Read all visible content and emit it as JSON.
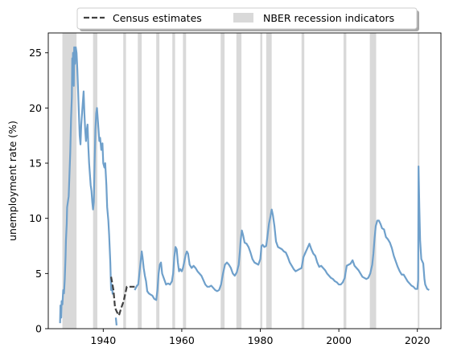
{
  "chart_data": {
    "type": "line",
    "title": "",
    "xlabel": "",
    "ylabel": "unemployment rate (%)",
    "xlim": [
      1926,
      2026
    ],
    "ylim": [
      0,
      26.8
    ],
    "xticks": [
      1940,
      1960,
      1980,
      2000,
      2020
    ],
    "yticks": [
      0,
      5,
      10,
      15,
      20,
      25
    ],
    "grid": false,
    "legend": {
      "placement": "top-center, outside",
      "entries": [
        {
          "label": "Census estimates",
          "style": "dashed",
          "color": "#404040"
        },
        {
          "label": "NBER recession indicators",
          "style": "patch",
          "color": "#d9d9d9"
        }
      ]
    },
    "recessions": [
      [
        1929.6,
        1933.2
      ],
      [
        1937.4,
        1938.5
      ],
      [
        1945.1,
        1945.8
      ],
      [
        1948.8,
        1949.8
      ],
      [
        1953.5,
        1954.3
      ],
      [
        1957.6,
        1958.3
      ],
      [
        1960.3,
        1961.1
      ],
      [
        1969.9,
        1970.9
      ],
      [
        1973.9,
        1975.2
      ],
      [
        1980.0,
        1980.5
      ],
      [
        1981.5,
        1982.9
      ],
      [
        1990.5,
        1991.2
      ],
      [
        2001.2,
        2001.9
      ],
      [
        2007.9,
        2009.5
      ],
      [
        2020.1,
        2020.3
      ]
    ],
    "series": [
      {
        "name": "",
        "color": "#6fa0cb",
        "style": "solid",
        "segments": [
          [
            [
              1929.0,
              0.5
            ],
            [
              1929.1,
              2.1
            ],
            [
              1929.3,
              1.0
            ],
            [
              1929.4,
              2.5
            ],
            [
              1929.6,
              2.2
            ],
            [
              1929.8,
              3.5
            ],
            [
              1930.0,
              3.2
            ],
            [
              1930.2,
              4.5
            ],
            [
              1930.4,
              6.5
            ],
            [
              1930.5,
              8.0
            ],
            [
              1930.7,
              9.5
            ],
            [
              1930.8,
              11.0
            ],
            [
              1931.0,
              11.5
            ],
            [
              1931.2,
              12.0
            ],
            [
              1931.4,
              14.0
            ],
            [
              1931.6,
              16.0
            ],
            [
              1931.8,
              19.0
            ],
            [
              1932.0,
              21.0
            ],
            [
              1932.1,
              24.5
            ],
            [
              1932.2,
              23.0
            ],
            [
              1932.3,
              25.0
            ],
            [
              1932.5,
              22.0
            ],
            [
              1932.6,
              25.5
            ],
            [
              1932.8,
              24.0
            ],
            [
              1933.0,
              25.5
            ],
            [
              1933.2,
              25.0
            ],
            [
              1933.4,
              23.5
            ],
            [
              1933.6,
              21.5
            ],
            [
              1933.8,
              19.5
            ],
            [
              1934.0,
              17.5
            ],
            [
              1934.2,
              16.7
            ],
            [
              1934.4,
              18.5
            ],
            [
              1934.6,
              19.5
            ],
            [
              1934.8,
              20.5
            ],
            [
              1935.0,
              21.5
            ],
            [
              1935.2,
              19.5
            ],
            [
              1935.4,
              18.0
            ],
            [
              1935.6,
              17.0
            ],
            [
              1935.8,
              18.0
            ],
            [
              1936.0,
              18.5
            ],
            [
              1936.2,
              16.5
            ],
            [
              1936.4,
              15.0
            ],
            [
              1936.6,
              14.0
            ],
            [
              1936.8,
              13.0
            ],
            [
              1937.0,
              12.5
            ],
            [
              1937.2,
              11.5
            ],
            [
              1937.4,
              10.8
            ],
            [
              1937.6,
              11.5
            ],
            [
              1937.8,
              15.0
            ],
            [
              1938.0,
              18.0
            ],
            [
              1938.2,
              19.5
            ],
            [
              1938.4,
              20.0
            ],
            [
              1938.6,
              19.0
            ],
            [
              1938.8,
              18.0
            ],
            [
              1939.0,
              17.0
            ],
            [
              1939.2,
              17.3
            ],
            [
              1939.5,
              16.2
            ],
            [
              1939.8,
              16.8
            ],
            [
              1940.0,
              15.0
            ],
            [
              1940.3,
              14.6
            ],
            [
              1940.5,
              15.0
            ],
            [
              1940.8,
              13.0
            ],
            [
              1941.0,
              11.0
            ],
            [
              1941.3,
              9.8
            ],
            [
              1941.5,
              8.5
            ],
            [
              1941.8,
              6.0
            ],
            [
              1942.0,
              3.5
            ],
            [
              1942.2,
              4.0
            ],
            [
              1942.4,
              3.1
            ]
          ],
          [
            [
              1943.2,
              1.0
            ],
            [
              1943.4,
              0.3
            ]
          ],
          [
            [
              1948.0,
              3.5
            ],
            [
              1948.3,
              3.7
            ],
            [
              1948.6,
              3.9
            ],
            [
              1948.9,
              4.0
            ],
            [
              1949.2,
              5.0
            ],
            [
              1949.5,
              6.0
            ],
            [
              1949.8,
              7.0
            ],
            [
              1950.0,
              6.5
            ],
            [
              1950.3,
              5.5
            ],
            [
              1950.6,
              4.8
            ],
            [
              1950.9,
              4.3
            ],
            [
              1951.2,
              3.4
            ],
            [
              1951.6,
              3.2
            ],
            [
              1952.0,
              3.1
            ],
            [
              1952.5,
              3.0
            ],
            [
              1953.0,
              2.7
            ],
            [
              1953.5,
              2.6
            ],
            [
              1953.8,
              3.5
            ],
            [
              1954.1,
              5.0
            ],
            [
              1954.4,
              5.8
            ],
            [
              1954.7,
              6.0
            ],
            [
              1955.0,
              5.0
            ],
            [
              1955.3,
              4.7
            ],
            [
              1955.7,
              4.3
            ],
            [
              1956.0,
              4.0
            ],
            [
              1956.5,
              4.1
            ],
            [
              1957.0,
              4.0
            ],
            [
              1957.5,
              4.3
            ],
            [
              1957.8,
              5.0
            ],
            [
              1958.1,
              6.5
            ],
            [
              1958.4,
              7.4
            ],
            [
              1958.7,
              7.2
            ],
            [
              1959.0,
              6.0
            ],
            [
              1959.3,
              5.2
            ],
            [
              1959.6,
              5.4
            ],
            [
              1960.0,
              5.2
            ],
            [
              1960.3,
              5.5
            ],
            [
              1960.6,
              6.0
            ],
            [
              1961.0,
              6.7
            ],
            [
              1961.3,
              7.0
            ],
            [
              1961.6,
              6.8
            ],
            [
              1962.0,
              5.8
            ],
            [
              1962.5,
              5.5
            ],
            [
              1963.0,
              5.7
            ],
            [
              1963.5,
              5.5
            ],
            [
              1964.0,
              5.2
            ],
            [
              1964.5,
              5.0
            ],
            [
              1965.0,
              4.8
            ],
            [
              1965.5,
              4.4
            ],
            [
              1966.0,
              4.0
            ],
            [
              1966.5,
              3.8
            ],
            [
              1967.0,
              3.8
            ],
            [
              1967.5,
              3.9
            ],
            [
              1968.0,
              3.7
            ],
            [
              1968.5,
              3.5
            ],
            [
              1969.0,
              3.4
            ],
            [
              1969.5,
              3.5
            ],
            [
              1970.0,
              4.0
            ],
            [
              1970.5,
              5.0
            ],
            [
              1971.0,
              5.8
            ],
            [
              1971.5,
              6.0
            ],
            [
              1972.0,
              5.8
            ],
            [
              1972.5,
              5.5
            ],
            [
              1973.0,
              5.0
            ],
            [
              1973.5,
              4.8
            ],
            [
              1974.0,
              5.1
            ],
            [
              1974.5,
              5.8
            ],
            [
              1974.8,
              7.0
            ],
            [
              1975.0,
              8.0
            ],
            [
              1975.3,
              8.9
            ],
            [
              1975.6,
              8.5
            ],
            [
              1976.0,
              7.8
            ],
            [
              1976.5,
              7.7
            ],
            [
              1977.0,
              7.4
            ],
            [
              1977.5,
              6.9
            ],
            [
              1978.0,
              6.3
            ],
            [
              1978.5,
              6.0
            ],
            [
              1979.0,
              5.9
            ],
            [
              1979.5,
              5.8
            ],
            [
              1980.0,
              6.3
            ],
            [
              1980.3,
              7.5
            ],
            [
              1980.6,
              7.6
            ],
            [
              1981.0,
              7.4
            ],
            [
              1981.5,
              7.5
            ],
            [
              1981.8,
              8.3
            ],
            [
              1982.2,
              9.5
            ],
            [
              1982.6,
              10.2
            ],
            [
              1982.9,
              10.8
            ],
            [
              1983.2,
              10.3
            ],
            [
              1983.6,
              9.3
            ],
            [
              1984.0,
              7.9
            ],
            [
              1984.5,
              7.4
            ],
            [
              1985.0,
              7.3
            ],
            [
              1985.5,
              7.2
            ],
            [
              1986.0,
              7.0
            ],
            [
              1986.5,
              6.9
            ],
            [
              1987.0,
              6.5
            ],
            [
              1987.5,
              6.0
            ],
            [
              1988.0,
              5.7
            ],
            [
              1988.5,
              5.4
            ],
            [
              1989.0,
              5.2
            ],
            [
              1989.5,
              5.3
            ],
            [
              1990.0,
              5.4
            ],
            [
              1990.5,
              5.5
            ],
            [
              1991.0,
              6.5
            ],
            [
              1991.5,
              6.9
            ],
            [
              1992.0,
              7.3
            ],
            [
              1992.5,
              7.7
            ],
            [
              1993.0,
              7.2
            ],
            [
              1993.5,
              6.8
            ],
            [
              1994.0,
              6.6
            ],
            [
              1994.5,
              6.0
            ],
            [
              1995.0,
              5.6
            ],
            [
              1995.5,
              5.7
            ],
            [
              1996.0,
              5.5
            ],
            [
              1996.5,
              5.3
            ],
            [
              1997.0,
              5.0
            ],
            [
              1997.5,
              4.8
            ],
            [
              1998.0,
              4.6
            ],
            [
              1998.5,
              4.5
            ],
            [
              1999.0,
              4.3
            ],
            [
              1999.5,
              4.2
            ],
            [
              2000.0,
              4.0
            ],
            [
              2000.5,
              4.0
            ],
            [
              2001.0,
              4.2
            ],
            [
              2001.5,
              4.6
            ],
            [
              2002.0,
              5.7
            ],
            [
              2002.5,
              5.8
            ],
            [
              2003.0,
              5.9
            ],
            [
              2003.5,
              6.2
            ],
            [
              2004.0,
              5.7
            ],
            [
              2004.5,
              5.5
            ],
            [
              2005.0,
              5.3
            ],
            [
              2005.5,
              5.0
            ],
            [
              2006.0,
              4.7
            ],
            [
              2006.5,
              4.6
            ],
            [
              2007.0,
              4.5
            ],
            [
              2007.5,
              4.6
            ],
            [
              2008.0,
              5.0
            ],
            [
              2008.5,
              5.8
            ],
            [
              2008.8,
              6.8
            ],
            [
              2009.1,
              8.2
            ],
            [
              2009.4,
              9.3
            ],
            [
              2009.8,
              9.8
            ],
            [
              2010.2,
              9.8
            ],
            [
              2010.6,
              9.5
            ],
            [
              2011.0,
              9.1
            ],
            [
              2011.5,
              9.0
            ],
            [
              2012.0,
              8.3
            ],
            [
              2012.5,
              8.1
            ],
            [
              2013.0,
              7.8
            ],
            [
              2013.5,
              7.3
            ],
            [
              2014.0,
              6.6
            ],
            [
              2014.5,
              6.1
            ],
            [
              2015.0,
              5.6
            ],
            [
              2015.5,
              5.2
            ],
            [
              2016.0,
              4.9
            ],
            [
              2016.5,
              4.9
            ],
            [
              2017.0,
              4.6
            ],
            [
              2017.5,
              4.3
            ],
            [
              2018.0,
              4.1
            ],
            [
              2018.5,
              3.9
            ],
            [
              2019.0,
              3.8
            ],
            [
              2019.5,
              3.6
            ],
            [
              2020.0,
              3.6
            ],
            [
              2020.2,
              4.4
            ],
            [
              2020.3,
              14.7
            ],
            [
              2020.5,
              11.0
            ],
            [
              2020.7,
              8.0
            ],
            [
              2021.0,
              6.3
            ],
            [
              2021.5,
              5.9
            ],
            [
              2021.8,
              4.5
            ],
            [
              2022.0,
              4.0
            ],
            [
              2022.5,
              3.6
            ],
            [
              2023.0,
              3.5
            ]
          ]
        ]
      },
      {
        "name": "Census estimates",
        "color": "#404040",
        "style": "dashed",
        "segments": [
          [
            [
              1942.0,
              4.7
            ],
            [
              1942.6,
              3.5
            ],
            [
              1943.0,
              1.9
            ],
            [
              1943.5,
              1.5
            ],
            [
              1944.0,
              1.2
            ],
            [
              1944.6,
              1.9
            ],
            [
              1945.2,
              2.5
            ],
            [
              1946.0,
              3.8
            ],
            [
              1947.0,
              3.8
            ],
            [
              1948.0,
              3.8
            ]
          ]
        ]
      }
    ]
  }
}
